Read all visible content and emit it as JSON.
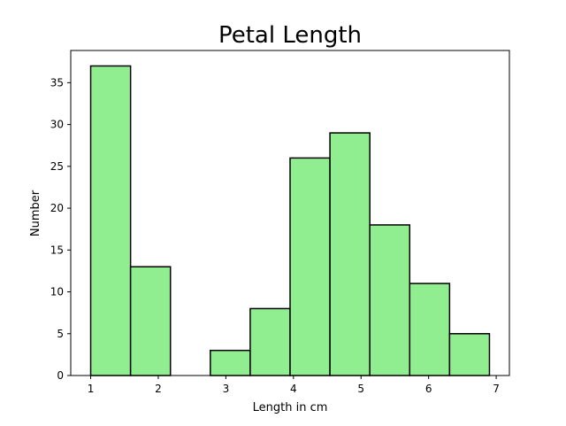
{
  "chart_data": {
    "type": "bar",
    "title": "Petal Length",
    "xlabel": "Length in cm",
    "ylabel": "Number",
    "bin_edges": [
      1.0,
      1.59,
      2.18,
      2.77,
      3.36,
      3.95,
      4.54,
      5.13,
      5.72,
      6.31,
      6.9
    ],
    "values": [
      37,
      13,
      0,
      3,
      8,
      26,
      29,
      18,
      11,
      5
    ],
    "xlim": [
      0.705,
      7.195
    ],
    "ylim": [
      0,
      38.85
    ],
    "xticks": [
      1,
      2,
      3,
      4,
      5,
      6,
      7
    ],
    "xtick_labels": [
      "1",
      "2",
      "3",
      "4",
      "5",
      "6",
      "7"
    ],
    "yticks": [
      0,
      5,
      10,
      15,
      20,
      25,
      30,
      35
    ],
    "ytick_labels": [
      "0",
      "5",
      "10",
      "15",
      "20",
      "25",
      "30",
      "35"
    ],
    "grid": false,
    "colors": {
      "bar_fill": "#90ee90",
      "bar_edge": "#000000"
    }
  }
}
